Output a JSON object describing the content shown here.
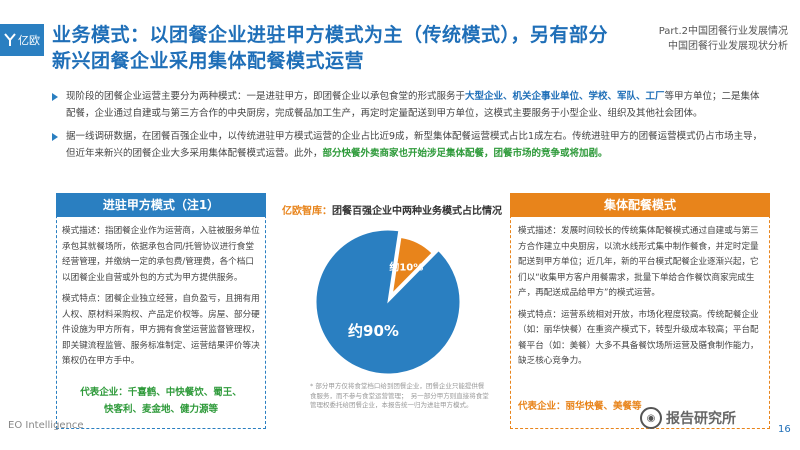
{
  "header": {
    "logo_text": "亿欧",
    "title": "业务模式：以团餐企业进驻甲方模式为主（传统模式），另有部分新兴团餐企业采用集体配餐模式运营",
    "part_line1": "Part.2中国团餐行业发展情况",
    "part_line2": "中国团餐行业发展现状分析"
  },
  "bullets": {
    "b1_a": "现阶段的团餐企业运营主要分为两种模式：一是进驻甲方，即团餐企业以承包食堂的形式服务于",
    "b1_em": "大型企业、机关企事业单位、学校、军队、工厂",
    "b1_b": "等甲方单位；二是集体配餐，企业通过自建或与第三方合作的中央厨房，完成餐品加工生产，再定时定量配送到甲方单位，这模式主要服务于小型企业、组织及其他社会团体。",
    "b2_a": "据一线调研数据，在团餐百强企业中，以传统进驻甲方模式运营的企业占比近9成，新型集体配餐运营模式占比1成左右。传统进驻甲方的团餐运营模式仍占市场主导，但近年来新兴的团餐企业大多采用集体配餐模式运营。此外，",
    "b2_em": "部分快餐外卖商家也开始涉足集体配餐，团餐市场的竞争或将加剧。"
  },
  "left_box": {
    "header": "进驻甲方模式（注1）",
    "desc": "模式描述：指团餐企业作为运营商，入驻被服务单位承包其就餐场所，依据承包合同/托管协议进行食堂经营管理，并缴纳一定的承包费/管理费，各个档口以团餐企业自营或外包的方式为甲方提供服务。",
    "feat": "模式特点：团餐企业独立经营，自负盈亏，且拥有用人权、原材料采购权、产品定价权等。房屋、部分硬件设施为甲方所有，甲方拥有食堂运营监督管理权，即关键流程监管、服务标准制定、运营结果评价等决策权仍在甲方手中。",
    "rep1": "代表企业：千喜鹤、中快餐饮、蜀王、",
    "rep2": "快客利、麦金地、健力源等"
  },
  "right_box": {
    "header": "集体配餐模式",
    "desc": "模式描述：发展时间较长的传统集体配餐模式通过自建或与第三方合作建立中央厨房，以流水线形式集中制作餐食，并定时定量配送到甲方单位；近几年，新的平台模式配餐企业逐渐兴起，它们以“收集甲方客户用餐需求，批量下单给合作餐饮商家完成生产，再配送成品给甲方”的模式运营。",
    "feat": "模式特点：运营系统相对开放，市场化程度较高。传统配餐企业（如：丽华快餐）在重资产模式下，转型升级成本较高；平台配餐平台（如：美餐）大多不具备餐饮场所运营及膳食制作能力，缺乏核心竞争力。",
    "rep": "代表企业：丽华快餐、美餐等"
  },
  "chart_title_brand": "亿欧智库：",
  "chart_title_text": "团餐百强企业中两种业务模式占比情况",
  "chart_data": {
    "type": "pie",
    "categories": [
      "进驻甲方模式",
      "集体配餐模式"
    ],
    "values": [
      90,
      10
    ],
    "labels": [
      "约90%",
      "约10%"
    ],
    "colors": [
      "#2a7fc1",
      "#e8841b"
    ]
  },
  "note": "* 部分甲方仅将食堂档口给到团餐企业，团餐企业只能提供餐食服务，而不参与食堂运营管理；　另一部分甲方则直接将食堂管理权委托给团餐企业，本报告统一归为进驻甲方模式。",
  "footer": "EO Intelligence",
  "page_number": "16",
  "watermark": "报告研究所"
}
